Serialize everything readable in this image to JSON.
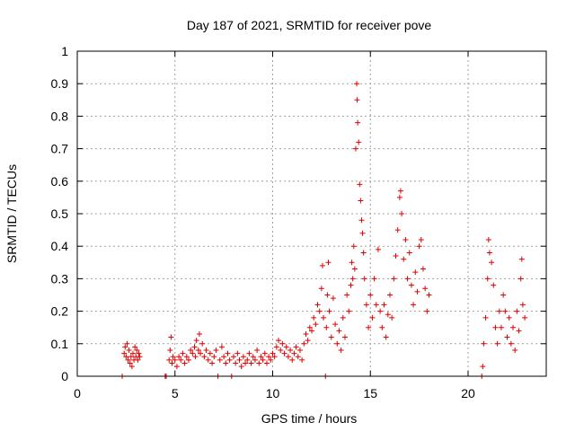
{
  "chart_data": {
    "type": "scatter",
    "title": "Day 187 of 2021, SRMTID for receiver pove",
    "xlabel": "GPS time / hours",
    "ylabel": "SRMTID / TECUs",
    "xlim": [
      0,
      24
    ],
    "ylim": [
      0,
      1
    ],
    "xticks": [
      0,
      5,
      10,
      15,
      20
    ],
    "xtick_labels": [
      "0",
      "5",
      "10",
      "15",
      "20"
    ],
    "yticks": [
      0,
      0.1,
      0.2,
      0.3,
      0.4,
      0.5,
      0.6,
      0.7,
      0.8,
      0.9,
      1
    ],
    "ytick_labels": [
      "0",
      "0.1",
      "0.2",
      "0.3",
      "0.4",
      "0.5",
      "0.6",
      "0.7",
      "0.8",
      "0.9",
      "1"
    ],
    "grid": true,
    "marker_color": "#e00000",
    "series": [
      {
        "name": "SRMTID",
        "marker": "plus",
        "points": [
          [
            2.3,
            0.0
          ],
          [
            2.4,
            0.07
          ],
          [
            2.45,
            0.09
          ],
          [
            2.5,
            0.06
          ],
          [
            2.55,
            0.1
          ],
          [
            2.6,
            0.05
          ],
          [
            2.65,
            0.08
          ],
          [
            2.7,
            0.04
          ],
          [
            2.75,
            0.06
          ],
          [
            2.8,
            0.03
          ],
          [
            2.85,
            0.07
          ],
          [
            2.9,
            0.05
          ],
          [
            2.95,
            0.09
          ],
          [
            3.0,
            0.06
          ],
          [
            3.05,
            0.08
          ],
          [
            3.1,
            0.05
          ],
          [
            3.15,
            0.07
          ],
          [
            3.2,
            0.06
          ],
          [
            4.5,
            0.0
          ],
          [
            4.55,
            0.0
          ],
          [
            4.7,
            0.05
          ],
          [
            4.75,
            0.08
          ],
          [
            4.8,
            0.12
          ],
          [
            4.85,
            0.04
          ],
          [
            4.9,
            0.06
          ],
          [
            5.0,
            0.05
          ],
          [
            5.1,
            0.03
          ],
          [
            5.2,
            0.06
          ],
          [
            5.3,
            0.05
          ],
          [
            5.4,
            0.07
          ],
          [
            5.5,
            0.04
          ],
          [
            5.6,
            0.06
          ],
          [
            5.7,
            0.05
          ],
          [
            5.8,
            0.08
          ],
          [
            5.9,
            0.07
          ],
          [
            6.0,
            0.09
          ],
          [
            6.05,
            0.06
          ],
          [
            6.1,
            0.11
          ],
          [
            6.2,
            0.08
          ],
          [
            6.25,
            0.13
          ],
          [
            6.3,
            0.07
          ],
          [
            6.4,
            0.1
          ],
          [
            6.5,
            0.06
          ],
          [
            6.6,
            0.08
          ],
          [
            6.7,
            0.05
          ],
          [
            6.8,
            0.07
          ],
          [
            6.9,
            0.04
          ],
          [
            7.0,
            0.06
          ],
          [
            7.1,
            0.08
          ],
          [
            7.2,
            0.0
          ],
          [
            7.3,
            0.05
          ],
          [
            7.4,
            0.09
          ],
          [
            7.5,
            0.06
          ],
          [
            7.6,
            0.04
          ],
          [
            7.7,
            0.07
          ],
          [
            7.8,
            0.05
          ],
          [
            7.9,
            0.0
          ],
          [
            8.0,
            0.06
          ],
          [
            8.1,
            0.04
          ],
          [
            8.2,
            0.07
          ],
          [
            8.3,
            0.05
          ],
          [
            8.4,
            0.03
          ],
          [
            8.5,
            0.06
          ],
          [
            8.6,
            0.04
          ],
          [
            8.7,
            0.05
          ],
          [
            8.8,
            0.07
          ],
          [
            8.9,
            0.04
          ],
          [
            9.0,
            0.06
          ],
          [
            9.1,
            0.05
          ],
          [
            9.2,
            0.08
          ],
          [
            9.3,
            0.04
          ],
          [
            9.4,
            0.06
          ],
          [
            9.5,
            0.05
          ],
          [
            9.6,
            0.07
          ],
          [
            9.7,
            0.04
          ],
          [
            9.8,
            0.06
          ],
          [
            9.9,
            0.05
          ],
          [
            10.0,
            0.07
          ],
          [
            10.1,
            0.06
          ],
          [
            10.2,
            0.09
          ],
          [
            10.3,
            0.11
          ],
          [
            10.4,
            0.08
          ],
          [
            10.5,
            0.1
          ],
          [
            10.6,
            0.07
          ],
          [
            10.7,
            0.09
          ],
          [
            10.8,
            0.06
          ],
          [
            10.9,
            0.08
          ],
          [
            11.0,
            0.05
          ],
          [
            11.1,
            0.07
          ],
          [
            11.2,
            0.09
          ],
          [
            11.3,
            0.06
          ],
          [
            11.4,
            0.08
          ],
          [
            11.5,
            0.05
          ],
          [
            11.6,
            0.1
          ],
          [
            11.7,
            0.13
          ],
          [
            11.8,
            0.11
          ],
          [
            11.9,
            0.15
          ],
          [
            12.0,
            0.14
          ],
          [
            12.1,
            0.18
          ],
          [
            12.2,
            0.16
          ],
          [
            12.3,
            0.22
          ],
          [
            12.4,
            0.2
          ],
          [
            12.5,
            0.27
          ],
          [
            12.55,
            0.34
          ],
          [
            12.6,
            0.18
          ],
          [
            12.7,
            0.0
          ],
          [
            12.75,
            0.15
          ],
          [
            12.8,
            0.25
          ],
          [
            12.85,
            0.35
          ],
          [
            12.9,
            0.2
          ],
          [
            13.0,
            0.12
          ],
          [
            13.1,
            0.24
          ],
          [
            13.2,
            0.16
          ],
          [
            13.3,
            0.1
          ],
          [
            13.4,
            0.14
          ],
          [
            13.5,
            0.08
          ],
          [
            13.6,
            0.18
          ],
          [
            13.7,
            0.12
          ],
          [
            13.8,
            0.25
          ],
          [
            13.9,
            0.2
          ],
          [
            14.0,
            0.28
          ],
          [
            14.05,
            0.35
          ],
          [
            14.1,
            0.3
          ],
          [
            14.15,
            0.4
          ],
          [
            14.2,
            0.33
          ],
          [
            14.25,
            0.7
          ],
          [
            14.3,
            0.9
          ],
          [
            14.32,
            0.85
          ],
          [
            14.35,
            0.78
          ],
          [
            14.4,
            0.72
          ],
          [
            14.45,
            0.59
          ],
          [
            14.5,
            0.54
          ],
          [
            14.55,
            0.48
          ],
          [
            14.6,
            0.44
          ],
          [
            14.65,
            0.38
          ],
          [
            14.7,
            0.3
          ],
          [
            14.8,
            0.22
          ],
          [
            14.9,
            0.15
          ],
          [
            15.0,
            0.25
          ],
          [
            15.1,
            0.18
          ],
          [
            15.2,
            0.3
          ],
          [
            15.3,
            0.22
          ],
          [
            15.4,
            0.39
          ],
          [
            15.5,
            0.2
          ],
          [
            15.6,
            0.15
          ],
          [
            15.7,
            0.22
          ],
          [
            15.8,
            0.12
          ],
          [
            15.9,
            0.19
          ],
          [
            16.0,
            0.25
          ],
          [
            16.1,
            0.18
          ],
          [
            16.2,
            0.3
          ],
          [
            16.3,
            0.37
          ],
          [
            16.4,
            0.45
          ],
          [
            16.5,
            0.55
          ],
          [
            16.55,
            0.57
          ],
          [
            16.6,
            0.5
          ],
          [
            16.7,
            0.36
          ],
          [
            16.8,
            0.42
          ],
          [
            16.9,
            0.3
          ],
          [
            17.0,
            0.38
          ],
          [
            17.1,
            0.28
          ],
          [
            17.2,
            0.22
          ],
          [
            17.3,
            0.32
          ],
          [
            17.4,
            0.26
          ],
          [
            17.5,
            0.4
          ],
          [
            17.6,
            0.42
          ],
          [
            17.7,
            0.33
          ],
          [
            17.8,
            0.27
          ],
          [
            17.9,
            0.2
          ],
          [
            18.0,
            0.25
          ],
          [
            20.7,
            0.0
          ],
          [
            20.75,
            0.03
          ],
          [
            20.8,
            0.1
          ],
          [
            20.9,
            0.18
          ],
          [
            21.0,
            0.3
          ],
          [
            21.05,
            0.42
          ],
          [
            21.1,
            0.38
          ],
          [
            21.2,
            0.35
          ],
          [
            21.3,
            0.28
          ],
          [
            21.4,
            0.15
          ],
          [
            21.5,
            0.1
          ],
          [
            21.6,
            0.2
          ],
          [
            21.7,
            0.15
          ],
          [
            21.8,
            0.25
          ],
          [
            21.9,
            0.2
          ],
          [
            22.0,
            0.12
          ],
          [
            22.1,
            0.18
          ],
          [
            22.2,
            0.1
          ],
          [
            22.3,
            0.15
          ],
          [
            22.4,
            0.08
          ],
          [
            22.5,
            0.2
          ],
          [
            22.6,
            0.14
          ],
          [
            22.7,
            0.3
          ],
          [
            22.75,
            0.36
          ],
          [
            22.8,
            0.22
          ],
          [
            22.9,
            0.18
          ]
        ]
      }
    ]
  }
}
